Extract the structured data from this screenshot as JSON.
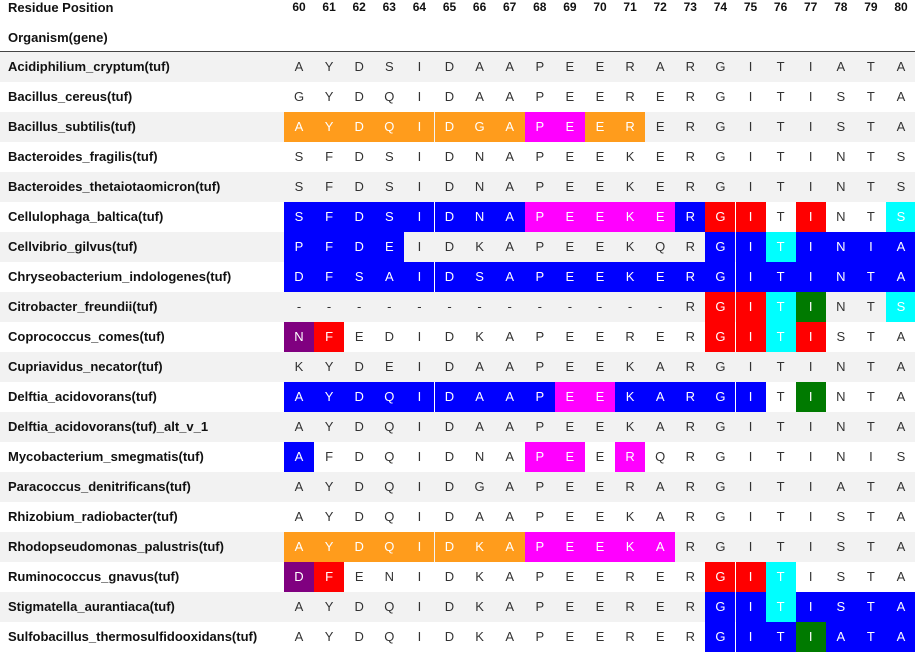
{
  "header": {
    "residue_position_label": "Residue Position",
    "organism_label": "Organism(gene)",
    "positions": [
      "60",
      "61",
      "62",
      "63",
      "64",
      "65",
      "66",
      "67",
      "68",
      "69",
      "70",
      "71",
      "72",
      "73",
      "74",
      "75",
      "76",
      "77",
      "78",
      "79",
      "80"
    ]
  },
  "colors": {
    "O": "#ff9c1c",
    "B": "#0000ff",
    "M": "#ff00ff",
    "R": "#ff0000",
    "C": "#00ffff",
    "G": "#007a00",
    "P": "#800080"
  },
  "rows": [
    {
      "organism": "Acidiphilium_cryptum(tuf)",
      "seq": [
        "A",
        "Y",
        "D",
        "S",
        "I",
        "D",
        "A",
        "A",
        "P",
        "E",
        "E",
        "R",
        "A",
        "R",
        "G",
        "I",
        "T",
        "I",
        "A",
        "T",
        "A"
      ],
      "col": [
        "",
        "",
        "",
        "",
        "",
        "",
        "",
        "",
        "",
        "",
        "",
        "",
        "",
        "",
        "",
        "",
        "",
        "",
        "",
        "",
        ""
      ]
    },
    {
      "organism": "Bacillus_cereus(tuf)",
      "seq": [
        "G",
        "Y",
        "D",
        "Q",
        "I",
        "D",
        "A",
        "A",
        "P",
        "E",
        "E",
        "R",
        "E",
        "R",
        "G",
        "I",
        "T",
        "I",
        "S",
        "T",
        "A"
      ],
      "col": [
        "",
        "",
        "",
        "",
        "",
        "",
        "",
        "",
        "",
        "",
        "",
        "",
        "",
        "",
        "",
        "",
        "",
        "",
        "",
        "",
        ""
      ]
    },
    {
      "organism": "Bacillus_subtilis(tuf)",
      "seq": [
        "A",
        "Y",
        "D",
        "Q",
        "I",
        "D",
        "G",
        "A",
        "P",
        "E",
        "E",
        "R",
        "E",
        "R",
        "G",
        "I",
        "T",
        "I",
        "S",
        "T",
        "A"
      ],
      "col": [
        "O",
        "O",
        "O",
        "O",
        "O",
        "O",
        "O",
        "O",
        "M",
        "M",
        "O",
        "O",
        "",
        "",
        "",
        "",
        "",
        "",
        "",
        "",
        ""
      ]
    },
    {
      "organism": "Bacteroides_fragilis(tuf)",
      "seq": [
        "S",
        "F",
        "D",
        "S",
        "I",
        "D",
        "N",
        "A",
        "P",
        "E",
        "E",
        "K",
        "E",
        "R",
        "G",
        "I",
        "T",
        "I",
        "N",
        "T",
        "S"
      ],
      "col": [
        "",
        "",
        "",
        "",
        "",
        "",
        "",
        "",
        "",
        "",
        "",
        "",
        "",
        "",
        "",
        "",
        "",
        "",
        "",
        "",
        ""
      ]
    },
    {
      "organism": "Bacteroides_thetaiotaomicron(tuf)",
      "seq": [
        "S",
        "F",
        "D",
        "S",
        "I",
        "D",
        "N",
        "A",
        "P",
        "E",
        "E",
        "K",
        "E",
        "R",
        "G",
        "I",
        "T",
        "I",
        "N",
        "T",
        "S"
      ],
      "col": [
        "",
        "",
        "",
        "",
        "",
        "",
        "",
        "",
        "",
        "",
        "",
        "",
        "",
        "",
        "",
        "",
        "",
        "",
        "",
        "",
        ""
      ]
    },
    {
      "organism": "Cellulophaga_baltica(tuf)",
      "seq": [
        "S",
        "F",
        "D",
        "S",
        "I",
        "D",
        "N",
        "A",
        "P",
        "E",
        "E",
        "K",
        "E",
        "R",
        "G",
        "I",
        "T",
        "I",
        "N",
        "T",
        "S"
      ],
      "col": [
        "B",
        "B",
        "B",
        "B",
        "B",
        "B",
        "B",
        "B",
        "M",
        "M",
        "M",
        "M",
        "M",
        "B",
        "R",
        "R",
        "",
        "R",
        "",
        "",
        "C"
      ]
    },
    {
      "organism": "Cellvibrio_gilvus(tuf)",
      "seq": [
        "P",
        "F",
        "D",
        "E",
        "I",
        "D",
        "K",
        "A",
        "P",
        "E",
        "E",
        "K",
        "Q",
        "R",
        "G",
        "I",
        "T",
        "I",
        "N",
        "I",
        "A"
      ],
      "col": [
        "B",
        "B",
        "B",
        "B",
        "",
        "",
        "",
        "",
        "",
        "",
        "",
        "",
        "",
        "",
        "B",
        "B",
        "C",
        "B",
        "B",
        "B",
        "B"
      ]
    },
    {
      "organism": "Chryseobacterium_indologenes(tuf)",
      "seq": [
        "D",
        "F",
        "S",
        "A",
        "I",
        "D",
        "S",
        "A",
        "P",
        "E",
        "E",
        "K",
        "E",
        "R",
        "G",
        "I",
        "T",
        "I",
        "N",
        "T",
        "A"
      ],
      "col": [
        "B",
        "B",
        "B",
        "B",
        "B",
        "B",
        "B",
        "B",
        "B",
        "B",
        "B",
        "B",
        "B",
        "B",
        "B",
        "B",
        "B",
        "B",
        "B",
        "B",
        "B"
      ]
    },
    {
      "organism": "Citrobacter_freundii(tuf)",
      "seq": [
        "-",
        "-",
        "-",
        "-",
        "-",
        "-",
        "-",
        "-",
        "-",
        "-",
        "-",
        "-",
        "-",
        "R",
        "G",
        "I",
        "T",
        "I",
        "N",
        "T",
        "S"
      ],
      "col": [
        "",
        "",
        "",
        "",
        "",
        "",
        "",
        "",
        "",
        "",
        "",
        "",
        "",
        "",
        "R",
        "R",
        "C",
        "G",
        "",
        "",
        "C"
      ]
    },
    {
      "organism": "Coprococcus_comes(tuf)",
      "seq": [
        "N",
        "F",
        "E",
        "D",
        "I",
        "D",
        "K",
        "A",
        "P",
        "E",
        "E",
        "R",
        "E",
        "R",
        "G",
        "I",
        "T",
        "I",
        "S",
        "T",
        "A"
      ],
      "col": [
        "P",
        "R",
        "",
        "",
        "",
        "",
        "",
        "",
        "",
        "",
        "",
        "",
        "",
        "",
        "R",
        "R",
        "C",
        "R",
        "",
        "",
        ""
      ]
    },
    {
      "organism": "Cupriavidus_necator(tuf)",
      "seq": [
        "K",
        "Y",
        "D",
        "E",
        "I",
        "D",
        "A",
        "A",
        "P",
        "E",
        "E",
        "K",
        "A",
        "R",
        "G",
        "I",
        "T",
        "I",
        "N",
        "T",
        "A"
      ],
      "col": [
        "",
        "",
        "",
        "",
        "",
        "",
        "",
        "",
        "",
        "",
        "",
        "",
        "",
        "",
        "",
        "",
        "",
        "",
        "",
        "",
        ""
      ]
    },
    {
      "organism": "Delftia_acidovorans(tuf)",
      "seq": [
        "A",
        "Y",
        "D",
        "Q",
        "I",
        "D",
        "A",
        "A",
        "P",
        "E",
        "E",
        "K",
        "A",
        "R",
        "G",
        "I",
        "T",
        "I",
        "N",
        "T",
        "A"
      ],
      "col": [
        "B",
        "B",
        "B",
        "B",
        "B",
        "B",
        "B",
        "B",
        "B",
        "M",
        "M",
        "B",
        "B",
        "B",
        "B",
        "B",
        "",
        "G",
        "",
        "",
        ""
      ]
    },
    {
      "organism": "Delftia_acidovorans(tuf)_alt_v_1",
      "seq": [
        "A",
        "Y",
        "D",
        "Q",
        "I",
        "D",
        "A",
        "A",
        "P",
        "E",
        "E",
        "K",
        "A",
        "R",
        "G",
        "I",
        "T",
        "I",
        "N",
        "T",
        "A"
      ],
      "col": [
        "",
        "",
        "",
        "",
        "",
        "",
        "",
        "",
        "",
        "",
        "",
        "",
        "",
        "",
        "",
        "",
        "",
        "",
        "",
        "",
        ""
      ]
    },
    {
      "organism": "Mycobacterium_smegmatis(tuf)",
      "seq": [
        "A",
        "F",
        "D",
        "Q",
        "I",
        "D",
        "N",
        "A",
        "P",
        "E",
        "E",
        "R",
        "Q",
        "R",
        "G",
        "I",
        "T",
        "I",
        "N",
        "I",
        "S"
      ],
      "col": [
        "B",
        "",
        "",
        "",
        "",
        "",
        "",
        "",
        "M",
        "M",
        "",
        "M",
        "",
        "",
        "",
        "",
        "",
        "",
        "",
        "",
        ""
      ]
    },
    {
      "organism": "Paracoccus_denitrificans(tuf)",
      "seq": [
        "A",
        "Y",
        "D",
        "Q",
        "I",
        "D",
        "G",
        "A",
        "P",
        "E",
        "E",
        "R",
        "A",
        "R",
        "G",
        "I",
        "T",
        "I",
        "A",
        "T",
        "A"
      ],
      "col": [
        "",
        "",
        "",
        "",
        "",
        "",
        "",
        "",
        "",
        "",
        "",
        "",
        "",
        "",
        "",
        "",
        "",
        "",
        "",
        "",
        ""
      ]
    },
    {
      "organism": "Rhizobium_radiobacter(tuf)",
      "seq": [
        "A",
        "Y",
        "D",
        "Q",
        "I",
        "D",
        "A",
        "A",
        "P",
        "E",
        "E",
        "K",
        "A",
        "R",
        "G",
        "I",
        "T",
        "I",
        "S",
        "T",
        "A"
      ],
      "col": [
        "",
        "",
        "",
        "",
        "",
        "",
        "",
        "",
        "",
        "",
        "",
        "",
        "",
        "",
        "",
        "",
        "",
        "",
        "",
        "",
        ""
      ]
    },
    {
      "organism": "Rhodopseudomonas_palustris(tuf)",
      "seq": [
        "A",
        "Y",
        "D",
        "Q",
        "I",
        "D",
        "K",
        "A",
        "P",
        "E",
        "E",
        "K",
        "A",
        "R",
        "G",
        "I",
        "T",
        "I",
        "S",
        "T",
        "A"
      ],
      "col": [
        "O",
        "O",
        "O",
        "O",
        "O",
        "O",
        "O",
        "O",
        "M",
        "M",
        "M",
        "M",
        "M",
        "",
        "",
        "",
        "",
        "",
        "",
        "",
        ""
      ]
    },
    {
      "organism": "Ruminococcus_gnavus(tuf)",
      "seq": [
        "D",
        "F",
        "E",
        "N",
        "I",
        "D",
        "K",
        "A",
        "P",
        "E",
        "E",
        "R",
        "E",
        "R",
        "G",
        "I",
        "T",
        "I",
        "S",
        "T",
        "A"
      ],
      "col": [
        "P",
        "R",
        "",
        "",
        "",
        "",
        "",
        "",
        "",
        "",
        "",
        "",
        "",
        "",
        "R",
        "R",
        "C",
        "",
        "",
        "",
        ""
      ]
    },
    {
      "organism": "Stigmatella_aurantiaca(tuf)",
      "seq": [
        "A",
        "Y",
        "D",
        "Q",
        "I",
        "D",
        "K",
        "A",
        "P",
        "E",
        "E",
        "R",
        "E",
        "R",
        "G",
        "I",
        "T",
        "I",
        "S",
        "T",
        "A"
      ],
      "col": [
        "",
        "",
        "",
        "",
        "",
        "",
        "",
        "",
        "",
        "",
        "",
        "",
        "",
        "",
        "B",
        "B",
        "C",
        "B",
        "B",
        "B",
        "B"
      ]
    },
    {
      "organism": "Sulfobacillus_thermosulfidooxidans(tuf)",
      "seq": [
        "A",
        "Y",
        "D",
        "Q",
        "I",
        "D",
        "K",
        "A",
        "P",
        "E",
        "E",
        "R",
        "E",
        "R",
        "G",
        "I",
        "T",
        "I",
        "A",
        "T",
        "A"
      ],
      "col": [
        "",
        "",
        "",
        "",
        "",
        "",
        "",
        "",
        "",
        "",
        "",
        "",
        "",
        "",
        "B",
        "B",
        "B",
        "G",
        "B",
        "B",
        "B"
      ]
    }
  ]
}
